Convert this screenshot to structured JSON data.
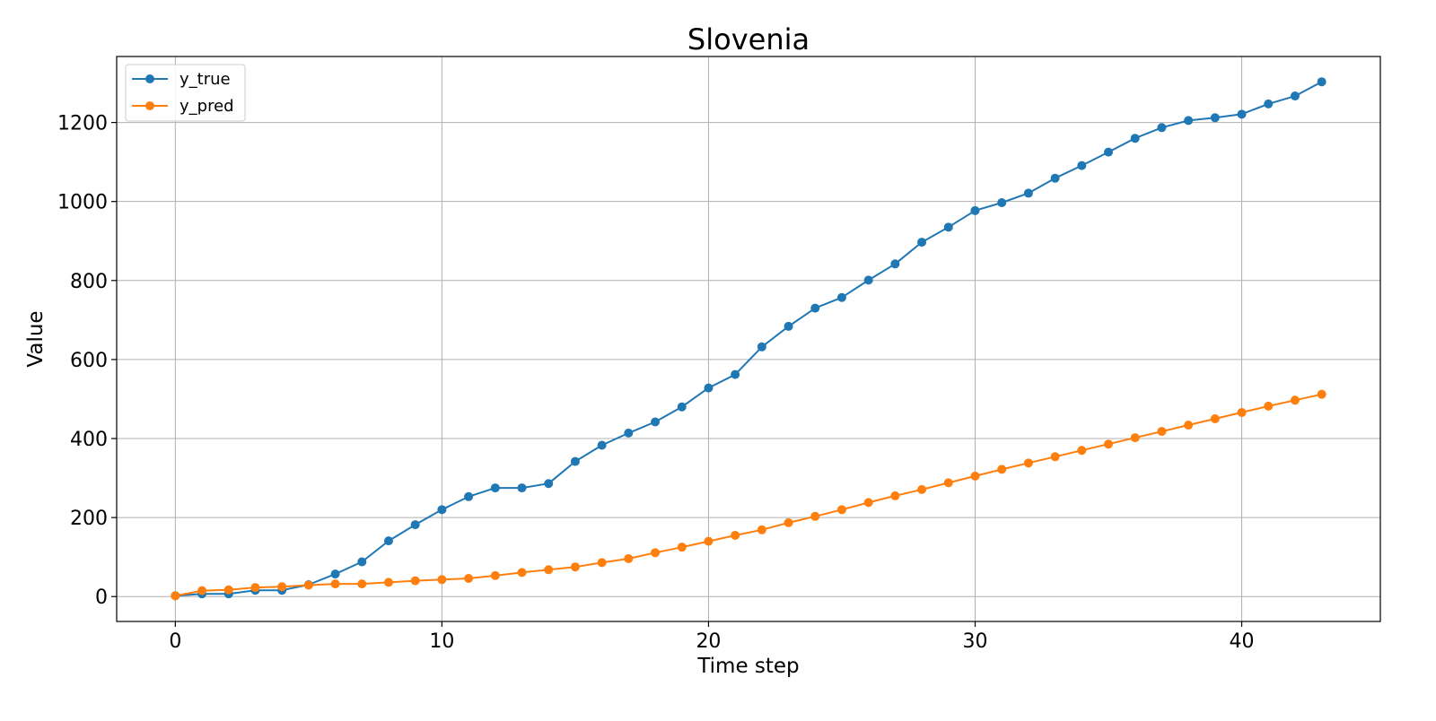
{
  "chart_data": {
    "type": "line",
    "title": "Slovenia",
    "xlabel": "Time step",
    "ylabel": "Value",
    "xlim": [
      -2.2,
      45.2
    ],
    "ylim": [
      -63,
      1367
    ],
    "x_ticks": [
      0,
      10,
      20,
      30,
      40
    ],
    "y_ticks": [
      0,
      200,
      400,
      600,
      800,
      1000,
      1200
    ],
    "grid": true,
    "legend_position": "top-left",
    "x": [
      0,
      1,
      2,
      3,
      4,
      5,
      6,
      7,
      8,
      9,
      10,
      11,
      12,
      13,
      14,
      15,
      16,
      17,
      18,
      19,
      20,
      21,
      22,
      23,
      24,
      25,
      26,
      27,
      28,
      29,
      30,
      31,
      32,
      33,
      34,
      35,
      36,
      37,
      38,
      39,
      40,
      41,
      42,
      43
    ],
    "series": [
      {
        "name": "y_true",
        "color": "#1f77b4",
        "values": [
          2,
          7,
          7,
          16,
          16,
          30,
          57,
          88,
          141,
          182,
          220,
          253,
          275,
          275,
          286,
          342,
          383,
          414,
          442,
          480,
          528,
          562,
          632,
          684,
          730,
          757,
          801,
          842,
          897,
          935,
          977,
          997,
          1021,
          1059,
          1091,
          1125,
          1160,
          1187,
          1205,
          1212,
          1221,
          1247,
          1267,
          1303
        ]
      },
      {
        "name": "y_pred",
        "color": "#ff7f0e",
        "values": [
          2,
          15,
          17,
          23,
          25,
          29,
          32,
          32,
          36,
          40,
          43,
          46,
          53,
          61,
          68,
          75,
          86,
          96,
          111,
          125,
          140,
          155,
          169,
          187,
          203,
          220,
          238,
          255,
          271,
          288,
          305,
          322,
          338,
          354,
          370,
          386,
          402,
          418,
          434,
          450,
          466,
          482,
          497,
          512
        ]
      }
    ]
  }
}
